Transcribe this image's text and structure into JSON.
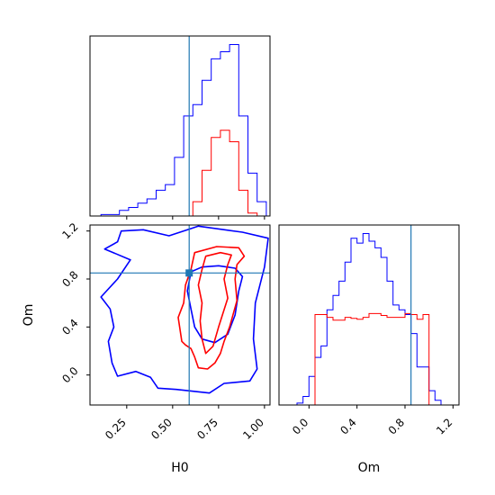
{
  "chart_data": [
    {
      "type": "histogram",
      "panel": "H0 marginal",
      "xlim": [
        0.05,
        1.03
      ],
      "bin_edges": [
        0.11,
        0.16,
        0.21,
        0.26,
        0.31,
        0.36,
        0.41,
        0.46,
        0.51,
        0.56,
        0.61,
        0.66,
        0.71,
        0.76,
        0.81,
        0.86,
        0.91,
        0.96,
        1.01
      ],
      "series": [
        {
          "color": "#0000ff",
          "counts": [
            1,
            1,
            4,
            6,
            9,
            12,
            18,
            22,
            41,
            70,
            78,
            95,
            110,
            115,
            120,
            70,
            30,
            10
          ]
        },
        {
          "color": "#ff0000",
          "counts": [
            0,
            0,
            0,
            0,
            0,
            0,
            0,
            0,
            0,
            0,
            10,
            32,
            55,
            60,
            52,
            18,
            2,
            0
          ]
        }
      ],
      "truth": {
        "color": "#1f77b4",
        "x": 0.59
      }
    },
    {
      "type": "contour",
      "panel": "H0 vs Om",
      "xlabel": "H0",
      "ylabel": "Om",
      "xlim": [
        0.05,
        1.03
      ],
      "ylim": [
        -0.25,
        1.25
      ],
      "xticks": [
        "0.25",
        "0.50",
        "0.75",
        "1.00"
      ],
      "yticks": [
        "0.0",
        "0.4",
        "0.8",
        "1.2"
      ],
      "series": [
        {
          "color": "#0000ff",
          "contours": [
            [
              [
                0.2,
                1.11
              ],
              [
                0.22,
                1.2
              ],
              [
                0.34,
                1.21
              ],
              [
                0.48,
                1.16
              ],
              [
                0.64,
                1.24
              ],
              [
                0.88,
                1.19
              ],
              [
                1.02,
                1.14
              ],
              [
                1.0,
                0.9
              ],
              [
                0.95,
                0.6
              ],
              [
                0.94,
                0.3
              ],
              [
                0.96,
                0.05
              ],
              [
                0.92,
                -0.05
              ],
              [
                0.78,
                -0.07
              ],
              [
                0.7,
                -0.15
              ],
              [
                0.52,
                -0.12
              ],
              [
                0.42,
                -0.11
              ],
              [
                0.38,
                -0.02
              ],
              [
                0.3,
                0.03
              ],
              [
                0.2,
                -0.01
              ],
              [
                0.17,
                0.1
              ],
              [
                0.15,
                0.28
              ],
              [
                0.18,
                0.4
              ],
              [
                0.16,
                0.55
              ],
              [
                0.11,
                0.65
              ],
              [
                0.2,
                0.8
              ],
              [
                0.27,
                0.96
              ],
              [
                0.13,
                1.05
              ],
              [
                0.2,
                1.11
              ]
            ],
            [
              [
                0.6,
                0.86
              ],
              [
                0.66,
                0.9
              ],
              [
                0.75,
                0.91
              ],
              [
                0.84,
                0.89
              ],
              [
                0.88,
                0.82
              ],
              [
                0.86,
                0.7
              ],
              [
                0.84,
                0.5
              ],
              [
                0.8,
                0.34
              ],
              [
                0.73,
                0.27
              ],
              [
                0.66,
                0.3
              ],
              [
                0.62,
                0.4
              ],
              [
                0.6,
                0.55
              ],
              [
                0.58,
                0.7
              ],
              [
                0.6,
                0.86
              ]
            ]
          ]
        },
        {
          "color": "#ff0000",
          "contours": [
            [
              [
                0.62,
                1.02
              ],
              [
                0.74,
                1.07
              ],
              [
                0.86,
                1.06
              ],
              [
                0.89,
                0.99
              ],
              [
                0.85,
                0.92
              ],
              [
                0.84,
                0.8
              ],
              [
                0.85,
                0.62
              ],
              [
                0.81,
                0.4
              ],
              [
                0.78,
                0.28
              ],
              [
                0.76,
                0.18
              ],
              [
                0.73,
                0.1
              ],
              [
                0.69,
                0.05
              ],
              [
                0.64,
                0.06
              ],
              [
                0.62,
                0.15
              ],
              [
                0.6,
                0.22
              ],
              [
                0.57,
                0.25
              ],
              [
                0.55,
                0.28
              ],
              [
                0.53,
                0.48
              ],
              [
                0.56,
                0.6
              ],
              [
                0.57,
                0.75
              ],
              [
                0.6,
                0.88
              ],
              [
                0.62,
                1.02
              ]
            ],
            [
              [
                0.68,
                0.99
              ],
              [
                0.76,
                1.02
              ],
              [
                0.82,
                1.0
              ],
              [
                0.8,
                0.92
              ],
              [
                0.78,
                0.8
              ],
              [
                0.8,
                0.64
              ],
              [
                0.75,
                0.4
              ],
              [
                0.72,
                0.24
              ],
              [
                0.68,
                0.18
              ],
              [
                0.66,
                0.3
              ],
              [
                0.65,
                0.45
              ],
              [
                0.66,
                0.6
              ],
              [
                0.64,
                0.75
              ],
              [
                0.66,
                0.88
              ],
              [
                0.68,
                0.99
              ]
            ]
          ]
        }
      ],
      "truth": {
        "color": "#1f77b4",
        "x": 0.59,
        "y": 0.85
      }
    },
    {
      "type": "histogram",
      "panel": "Om marginal",
      "xlabel": "Om",
      "xlim": [
        -0.25,
        1.25
      ],
      "xticks": [
        "0.0",
        "0.4",
        "0.8",
        "1.2"
      ],
      "bin_edges": [
        -0.25,
        -0.2,
        -0.15,
        -0.1,
        -0.05,
        0.0,
        0.05,
        0.1,
        0.15,
        0.2,
        0.25,
        0.3,
        0.35,
        0.4,
        0.45,
        0.5,
        0.55,
        0.6,
        0.65,
        0.7,
        0.75,
        0.8,
        0.85,
        0.9,
        0.95,
        1.0,
        1.05,
        1.1,
        1.15,
        1.2,
        1.25
      ],
      "series": [
        {
          "color": "#0000ff",
          "counts": [
            0,
            0,
            0,
            2,
            9,
            30,
            50,
            62,
            100,
            115,
            130,
            150,
            175,
            170,
            180,
            172,
            165,
            155,
            130,
            105,
            100,
            95,
            75,
            40,
            40,
            15,
            5,
            0,
            0,
            0
          ]
        },
        {
          "color": "#ff0000",
          "counts": [
            0,
            0,
            0,
            0,
            0,
            0,
            95,
            95,
            92,
            89,
            89,
            92,
            91,
            90,
            92,
            96,
            96,
            94,
            92,
            92,
            92,
            96,
            95,
            90,
            95,
            0,
            0,
            0,
            0,
            0
          ]
        }
      ],
      "truth": {
        "color": "#1f77b4",
        "x": 0.85
      }
    }
  ]
}
